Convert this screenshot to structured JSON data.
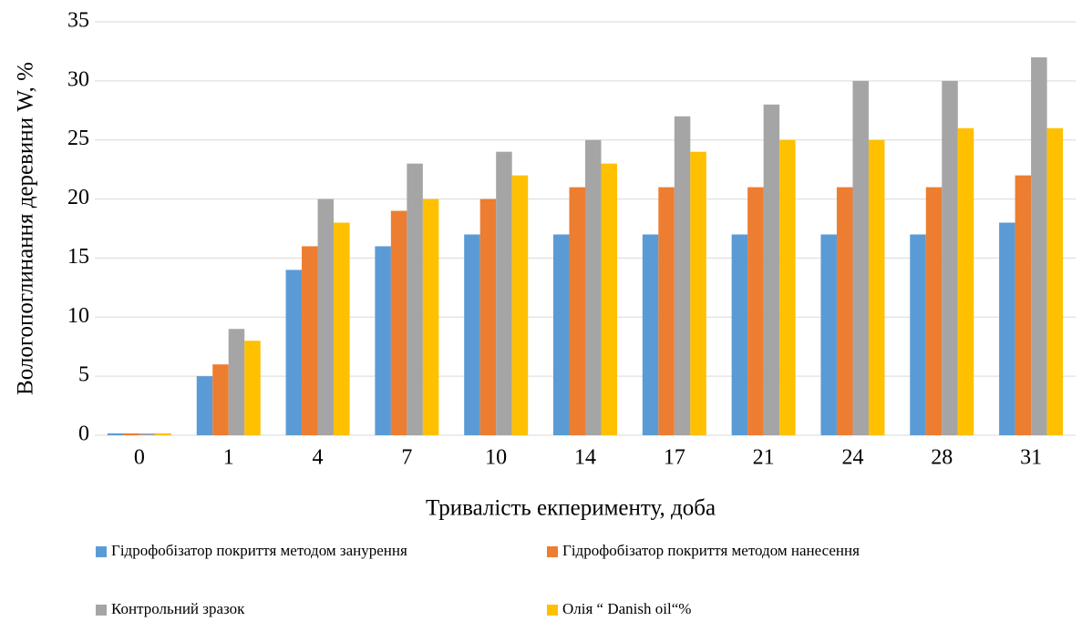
{
  "chart_data": {
    "type": "bar",
    "x_label": "Тривалість екперименту, доба",
    "y_label": "Вологопоглинання деревини W, %",
    "categories": [
      "0",
      "1",
      "4",
      "7",
      "10",
      "14",
      "17",
      "21",
      "24",
      "28",
      "31"
    ],
    "series": [
      {
        "name": "Гідрофобізатор покриття методом занурення",
        "color": "#5b9bd5",
        "values": [
          0,
          5,
          14,
          16,
          17,
          17,
          17,
          17,
          17,
          17,
          18
        ]
      },
      {
        "name": "Гідрофобізатор покриття методом нанесення",
        "color": "#ed7d31",
        "values": [
          0,
          6,
          16,
          19,
          20,
          21,
          21,
          21,
          21,
          21,
          22
        ]
      },
      {
        "name": "Контрольний зразок",
        "color": "#a5a5a5",
        "values": [
          0,
          9,
          20,
          23,
          24,
          25,
          27,
          28,
          30,
          30,
          32
        ]
      },
      {
        "name": "Олія “ Danish oil“%",
        "color": "#ffc000",
        "values": [
          0,
          8,
          18,
          20,
          22,
          23,
          24,
          25,
          25,
          26,
          26
        ]
      }
    ],
    "ylim": [
      0,
      35
    ],
    "yticks": [
      0,
      5,
      10,
      15,
      20,
      25,
      30,
      35
    ],
    "grid": true,
    "legend": "bottom"
  }
}
